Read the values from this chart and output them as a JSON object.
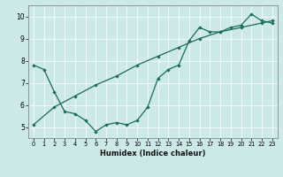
{
  "xlabel": "Humidex (Indice chaleur)",
  "xlim": [
    -0.5,
    23.5
  ],
  "ylim": [
    4.5,
    10.5
  ],
  "xticks": [
    0,
    1,
    2,
    3,
    4,
    5,
    6,
    7,
    8,
    9,
    10,
    11,
    12,
    13,
    14,
    15,
    16,
    17,
    18,
    19,
    20,
    21,
    22,
    23
  ],
  "yticks": [
    5,
    6,
    7,
    8,
    9,
    10
  ],
  "bg_color": "#cce8e8",
  "line_color": "#1a6b5a",
  "line1_x": [
    0,
    1,
    2,
    3,
    4,
    5,
    6,
    7,
    8,
    9,
    10,
    11,
    12,
    13,
    14,
    15,
    16,
    17,
    18,
    19,
    20,
    21,
    22,
    23
  ],
  "line1_y": [
    7.8,
    7.6,
    6.6,
    5.7,
    5.6,
    5.3,
    4.8,
    5.1,
    5.2,
    5.1,
    5.3,
    5.9,
    7.2,
    7.6,
    7.8,
    8.9,
    9.5,
    9.3,
    9.3,
    9.5,
    9.6,
    10.1,
    9.8,
    9.7
  ],
  "line2_x": [
    0,
    2,
    4,
    6,
    8,
    10,
    12,
    14,
    16,
    18,
    20,
    22,
    23
  ],
  "line2_y": [
    5.1,
    5.9,
    6.4,
    6.9,
    7.3,
    7.8,
    8.2,
    8.6,
    9.0,
    9.3,
    9.5,
    9.7,
    9.8
  ]
}
